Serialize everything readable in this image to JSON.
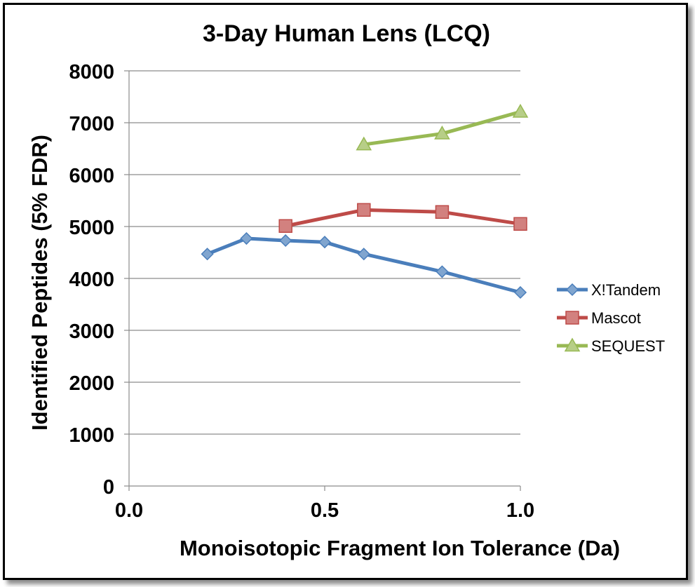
{
  "chart_data": {
    "type": "line",
    "title": "3-Day Human Lens (LCQ)",
    "xlabel": "Monoisotopic Fragment Ion Tolerance (Da)",
    "ylabel": "Identified Peptides (5% FDR)",
    "xlim": [
      0,
      1
    ],
    "ylim": [
      0,
      8000
    ],
    "xticks": [
      "0.0",
      "0.5",
      "1.0"
    ],
    "yticks": [
      "0",
      "1000",
      "2000",
      "3000",
      "4000",
      "5000",
      "6000",
      "7000",
      "8000"
    ],
    "grid": "horizontal",
    "legend_position": "right",
    "series": [
      {
        "name": "X!Tandem",
        "color": "#4A7EBB",
        "marker": "diamond",
        "x": [
          0.2,
          0.3,
          0.4,
          0.5,
          0.6,
          0.8,
          1.0
        ],
        "y": [
          4470,
          4770,
          4730,
          4700,
          4470,
          4130,
          3730
        ]
      },
      {
        "name": "Mascot",
        "color": "#BE4B48",
        "marker": "square",
        "x": [
          0.4,
          0.6,
          0.8,
          1.0
        ],
        "y": [
          5010,
          5320,
          5280,
          5050
        ]
      },
      {
        "name": "SEQUEST",
        "color": "#98B954",
        "marker": "triangle",
        "x": [
          0.6,
          0.8,
          1.0
        ],
        "y": [
          6580,
          6790,
          7210
        ]
      }
    ]
  }
}
